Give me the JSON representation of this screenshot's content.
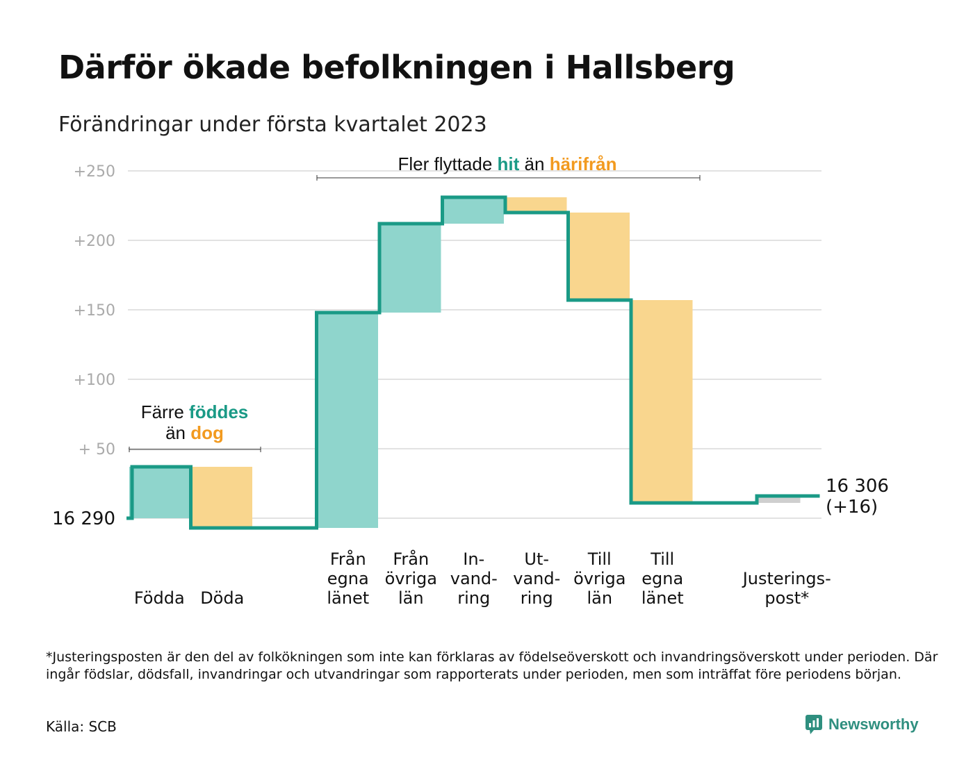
{
  "title": "Därför ökade befolkningen i Hallsberg",
  "subtitle": "Förändringar under första kvartalet 2023",
  "colors": {
    "line": "#1a9a86",
    "increase": "#8fd5cc",
    "decrease": "#f9d68e",
    "adjustment": "#cfcfcf",
    "grid": "#e2e2e2",
    "tick": "#aaaaaa",
    "highlight_in": "#1a9a86",
    "highlight_out": "#f29a1f"
  },
  "annotations": {
    "births": {
      "line1_prefix": "Färre ",
      "line1_highlight": "föddes",
      "line2_prefix": "än ",
      "line2_highlight": "dog"
    },
    "migration": {
      "prefix": "Fler flyttade ",
      "highlight_in": "hit",
      "middle": " än ",
      "highlight_out": "härifrån"
    }
  },
  "chart_data": {
    "type": "waterfall",
    "baseline_label": "16 290",
    "end_label": "16 306",
    "end_change_label": "(+16)",
    "y_tick_labels": [
      "+250",
      "+200",
      "+150",
      "+100",
      "+ 50"
    ],
    "y_ticks": [
      250,
      200,
      150,
      100,
      50
    ],
    "ylim": [
      -15,
      260
    ],
    "grid": true,
    "steps": [
      {
        "label": [
          "Födda"
        ],
        "value": 37,
        "kind": "increase"
      },
      {
        "label": [
          "Döda"
        ],
        "value": -44,
        "kind": "decrease"
      },
      {
        "label": [],
        "value": 0,
        "kind": "gap"
      },
      {
        "label": [
          "Från",
          "egna",
          "länet"
        ],
        "value": 155,
        "kind": "increase"
      },
      {
        "label": [
          "Från",
          "övriga",
          "län"
        ],
        "value": 64,
        "kind": "increase"
      },
      {
        "label": [
          "In-",
          "vand-",
          "ring"
        ],
        "value": 19,
        "kind": "increase"
      },
      {
        "label": [
          "Ut-",
          "vand-",
          "ring"
        ],
        "value": -11,
        "kind": "decrease"
      },
      {
        "label": [
          "Till",
          "övriga",
          "län"
        ],
        "value": -63,
        "kind": "decrease"
      },
      {
        "label": [
          "Till",
          "egna",
          "länet"
        ],
        "value": -146,
        "kind": "decrease"
      },
      {
        "label": [],
        "value": 0,
        "kind": "gap"
      },
      {
        "label": [
          "Justerings-",
          "post*"
        ],
        "value": 5,
        "kind": "adjustment"
      }
    ]
  },
  "footnote": "*Justeringsposten är den del av folkökningen som inte kan förklaras av födelseöverskott och invandringsöverskott under perioden. Där ingår födslar, dödsfall, invandringar och utvandringar som rapporterats under perioden, men som inträffat före periodens början.",
  "source": "Källa: SCB",
  "logo_text": "Newsworthy"
}
